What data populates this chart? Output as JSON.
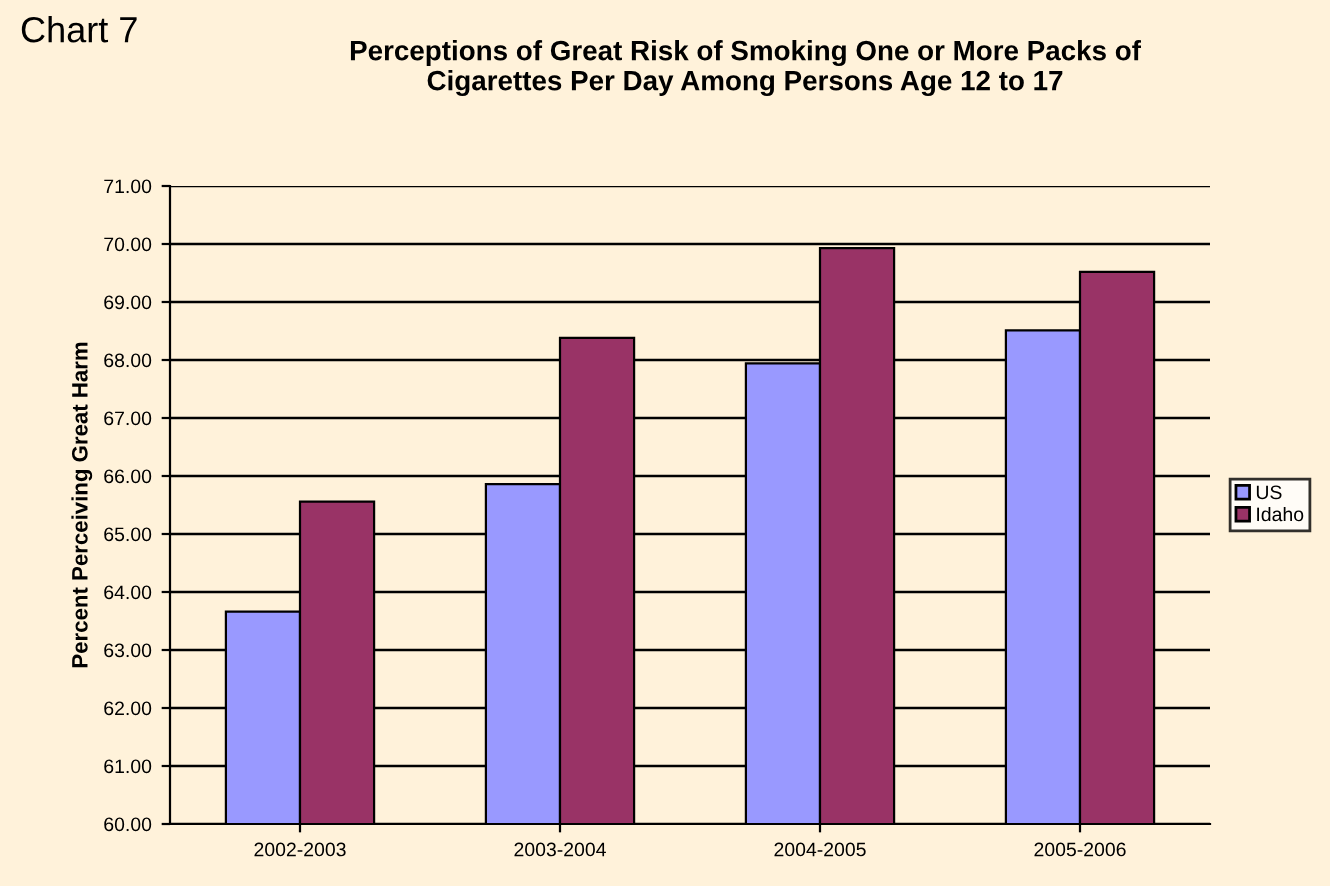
{
  "chart_data": {
    "type": "bar",
    "title": "Perceptions of Great Risk of Smoking One or More Packs of\nCigarettes Per Day Among Persons Age 12 to 17",
    "ylabel": "Percent Perceiving Great Harm",
    "annotations": [
      "Chart 7"
    ],
    "categories": [
      "2002-2003",
      "2003-2004",
      "2004-2005",
      "2005-2006"
    ],
    "series": [
      {
        "name": "US",
        "color": "#9999ff",
        "values": [
          63.66,
          65.86,
          67.94,
          68.51
        ]
      },
      {
        "name": "Idaho",
        "color": "#993366",
        "values": [
          65.56,
          68.38,
          69.93,
          69.52
        ]
      }
    ],
    "ylim": [
      60,
      71
    ],
    "yticks": [
      {
        "value": 60,
        "label": "60.00"
      },
      {
        "value": 61,
        "label": "61.00"
      },
      {
        "value": 62,
        "label": "62.00"
      },
      {
        "value": 63,
        "label": "63.00"
      },
      {
        "value": 64,
        "label": "64.00"
      },
      {
        "value": 65,
        "label": "65.00"
      },
      {
        "value": 66,
        "label": "66.00"
      },
      {
        "value": 67,
        "label": "67.00"
      },
      {
        "value": 68,
        "label": "68.00"
      },
      {
        "value": 69,
        "label": "69.00"
      },
      {
        "value": 70,
        "label": "70.00"
      },
      {
        "value": 71,
        "label": "71.00"
      }
    ],
    "grid": "y",
    "legend": "right"
  }
}
